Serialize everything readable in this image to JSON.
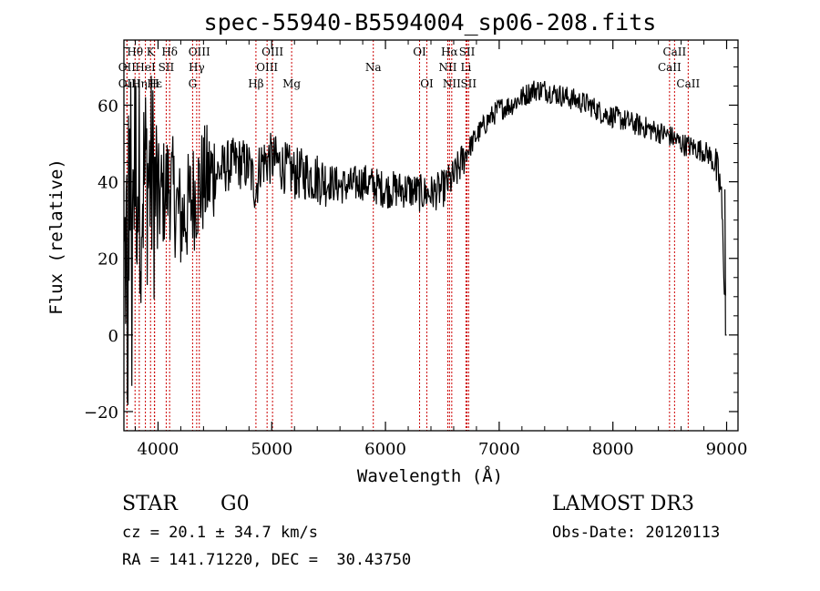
{
  "chart_data": {
    "type": "line",
    "title": "spec-55940-B5594004_sp06-208.fits",
    "xlabel": "Wavelength (Å)",
    "ylabel": "Flux (relative)",
    "xlim": [
      3700,
      9100
    ],
    "ylim": [
      -25,
      77
    ],
    "x_ticks": [
      4000,
      5000,
      6000,
      7000,
      8000,
      9000
    ],
    "y_ticks": [
      -20,
      0,
      20,
      40,
      60
    ],
    "spectrum_envelope": {
      "x": [
        3700,
        3750,
        3800,
        3850,
        3900,
        3950,
        4000,
        4050,
        4100,
        4150,
        4200,
        4250,
        4300,
        4350,
        4400,
        4500,
        4600,
        4700,
        4800,
        4860,
        4900,
        5000,
        5100,
        5200,
        5300,
        5400,
        5500,
        5600,
        5700,
        5800,
        5900,
        6000,
        6100,
        6200,
        6300,
        6400,
        6500,
        6560,
        6600,
        6700,
        6800,
        6900,
        7000,
        7100,
        7200,
        7300,
        7400,
        7500,
        7600,
        7700,
        7800,
        7900,
        8000,
        8100,
        8200,
        8300,
        8400,
        8500,
        8600,
        8700,
        8800,
        8850,
        8900,
        8950,
        9000
      ],
      "y": [
        15,
        40,
        45,
        38,
        42,
        40,
        35,
        37,
        40,
        35,
        30,
        32,
        36,
        38,
        40,
        42,
        44,
        45,
        44,
        38,
        45,
        46,
        44,
        42,
        42,
        41,
        40,
        39,
        39,
        40,
        39,
        38,
        38,
        38,
        37,
        37,
        38,
        40,
        41,
        47,
        52,
        56,
        59,
        60,
        62,
        64,
        64,
        63,
        62,
        61,
        60,
        58,
        57,
        56,
        55,
        54,
        53,
        52,
        50,
        49,
        48,
        47,
        44,
        38,
        0
      ]
    },
    "emission_lines": [
      {
        "label": "Hθ",
        "x": 3798,
        "row": 1
      },
      {
        "label": "K",
        "x": 3934,
        "row": 1
      },
      {
        "label": "Hδ",
        "x": 4102,
        "row": 1
      },
      {
        "label": "OIII",
        "x": 4363,
        "row": 1
      },
      {
        "label": "OIII",
        "x": 5007,
        "row": 1
      },
      {
        "label": "OI",
        "x": 6300,
        "row": 1
      },
      {
        "label": "Hα",
        "x": 6563,
        "row": 1
      },
      {
        "label": "SII",
        "x": 6717,
        "row": 1
      },
      {
        "label": "CaII",
        "x": 8542,
        "row": 1
      },
      {
        "label": "OII",
        "x": 3727,
        "row": 2
      },
      {
        "label": "HeI",
        "x": 3889,
        "row": 2
      },
      {
        "label": "SII",
        "x": 4072,
        "row": 2
      },
      {
        "label": "Hγ",
        "x": 4340,
        "row": 2
      },
      {
        "label": "OIII",
        "x": 4959,
        "row": 2
      },
      {
        "label": "Na",
        "x": 5893,
        "row": 2
      },
      {
        "label": "NII",
        "x": 6548,
        "row": 2
      },
      {
        "label": "Li",
        "x": 6708,
        "row": 2
      },
      {
        "label": "CaII",
        "x": 8498,
        "row": 2
      },
      {
        "label": "OII",
        "x": 3727,
        "row": 3
      },
      {
        "label": "Hε",
        "x": 3970,
        "row": 3
      },
      {
        "label": "Hη",
        "x": 3835,
        "row": 3
      },
      {
        "label": "H",
        "x": 3968,
        "row": 3
      },
      {
        "label": "G",
        "x": 4304,
        "row": 3
      },
      {
        "label": "Hβ",
        "x": 4861,
        "row": 3
      },
      {
        "label": "Mg",
        "x": 5175,
        "row": 3
      },
      {
        "label": "OI",
        "x": 6364,
        "row": 3
      },
      {
        "label": "NII",
        "x": 6583,
        "row": 3
      },
      {
        "label": "SII",
        "x": 6731,
        "row": 3
      },
      {
        "label": "CaII",
        "x": 8662,
        "row": 3
      }
    ]
  },
  "info": {
    "class": "STAR",
    "subclass": "G0",
    "survey": "LAMOST DR3",
    "cz": "cz = 20.1 ± 34.7 km/s",
    "obs_date": "Obs-Date: 20120113",
    "coords": "RA = 141.71220, DEC =  30.43750"
  },
  "colors": {
    "line_marker": "#cc0000",
    "spectrum": "#000000"
  }
}
